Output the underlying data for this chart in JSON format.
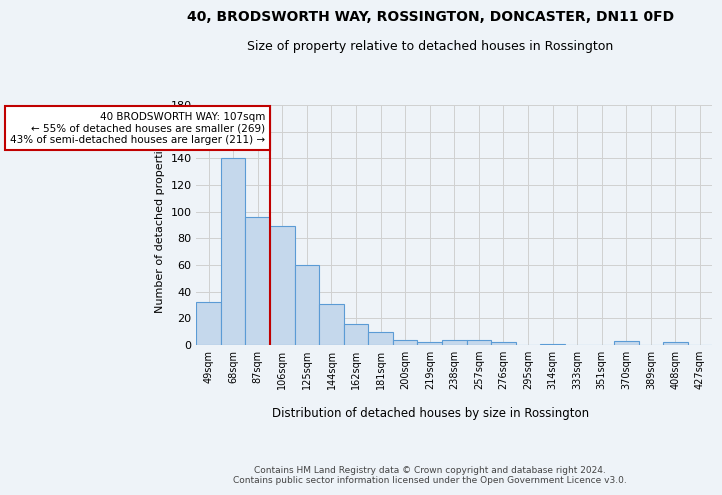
{
  "title1": "40, BRODSWORTH WAY, ROSSINGTON, DONCASTER, DN11 0FD",
  "title2": "Size of property relative to detached houses in Rossington",
  "xlabel": "Distribution of detached houses by size in Rossington",
  "ylabel": "Number of detached properties",
  "categories": [
    "49sqm",
    "68sqm",
    "87sqm",
    "106sqm",
    "125sqm",
    "144sqm",
    "162sqm",
    "181sqm",
    "200sqm",
    "219sqm",
    "238sqm",
    "257sqm",
    "276sqm",
    "295sqm",
    "314sqm",
    "333sqm",
    "351sqm",
    "370sqm",
    "389sqm",
    "408sqm",
    "427sqm"
  ],
  "values": [
    32,
    140,
    96,
    89,
    60,
    31,
    16,
    10,
    4,
    2,
    4,
    4,
    2,
    0,
    1,
    0,
    0,
    3,
    0,
    2,
    0
  ],
  "bar_color": "#c5d8ec",
  "bar_edge_color": "#5b9bd5",
  "highlight_index": 3,
  "highlight_line_color": "#c00000",
  "annotation_text": "40 BRODSWORTH WAY: 107sqm\n← 55% of detached houses are smaller (269)\n43% of semi-detached houses are larger (211) →",
  "annotation_box_color": "#ffffff",
  "annotation_box_edge_color": "#c00000",
  "ylim": [
    0,
    180
  ],
  "yticks": [
    0,
    20,
    40,
    60,
    80,
    100,
    120,
    140,
    160,
    180
  ],
  "grid_color": "#d0d0d0",
  "background_color": "#eef3f8",
  "footer": "Contains HM Land Registry data © Crown copyright and database right 2024.\nContains public sector information licensed under the Open Government Licence v3.0.",
  "title1_fontsize": 10,
  "title2_fontsize": 9,
  "xlabel_fontsize": 8.5,
  "ylabel_fontsize": 8,
  "footer_fontsize": 6.5,
  "annotation_fontsize": 7.5
}
